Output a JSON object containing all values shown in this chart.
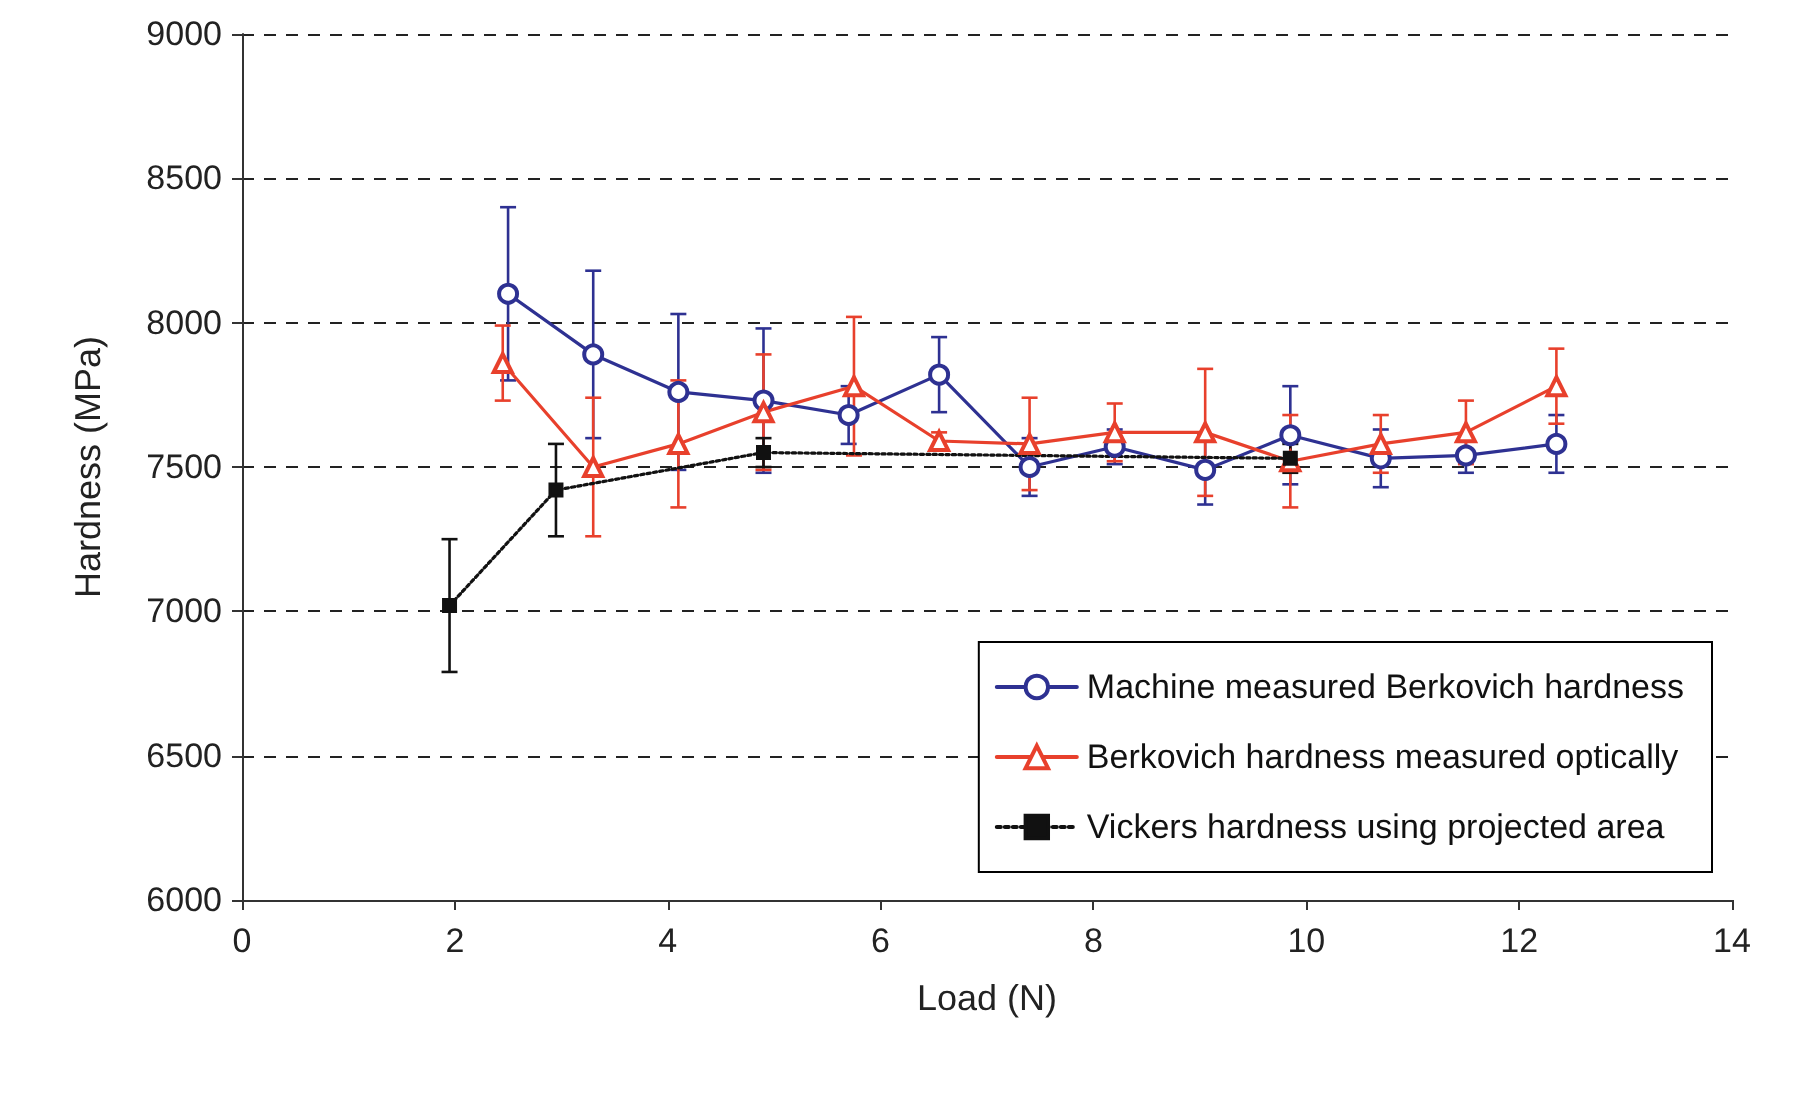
{
  "chart_data": {
    "type": "line",
    "xlabel": "Load (N)",
    "ylabel": "Hardness (MPa)",
    "xlim": [
      0,
      14
    ],
    "xticks": [
      0,
      2,
      4,
      6,
      8,
      10,
      12,
      14
    ],
    "ylim": [
      6000,
      9000
    ],
    "yticks": [
      6000,
      6500,
      7000,
      7500,
      8000,
      8500,
      9000
    ],
    "grid": "y",
    "legend": "bottom right",
    "series": [
      {
        "name": "Machine measured Berkovich hardness",
        "color": "#2e3192",
        "marker": "circle",
        "line_style": "solid",
        "x": [
          2.5,
          3.3,
          4.1,
          4.9,
          5.7,
          6.55,
          7.4,
          8.2,
          9.05,
          9.85,
          10.7,
          11.5,
          12.35
        ],
        "values": [
          8100,
          7890,
          7760,
          7730,
          7680,
          7820,
          7500,
          7570,
          7490,
          7610,
          7530,
          7540,
          7580
        ],
        "errors": [
          300,
          290,
          270,
          250,
          100,
          130,
          100,
          60,
          120,
          170,
          100,
          60,
          100
        ]
      },
      {
        "name": "Berkovich hardness measured optically",
        "color": "#e8402c",
        "marker": "triangle",
        "line_style": "solid",
        "x": [
          2.45,
          3.3,
          4.1,
          4.9,
          5.75,
          6.55,
          7.4,
          8.2,
          9.05,
          9.85,
          10.7,
          11.5,
          12.35
        ],
        "values": [
          7860,
          7500,
          7580,
          7690,
          7780,
          7590,
          7580,
          7620,
          7620,
          7520,
          7580,
          7620,
          7780
        ],
        "errors": [
          130,
          240,
          220,
          200,
          240,
          30,
          160,
          100,
          220,
          160,
          100,
          110,
          130
        ]
      },
      {
        "name": "Vickers hardness using projected area",
        "color": "#111111",
        "marker": "square",
        "line_style": "dotted",
        "x": [
          1.95,
          2.95,
          4.9,
          9.85
        ],
        "values": [
          7020,
          7420,
          7550,
          7530
        ],
        "errors": [
          230,
          160,
          50,
          50
        ]
      }
    ]
  }
}
